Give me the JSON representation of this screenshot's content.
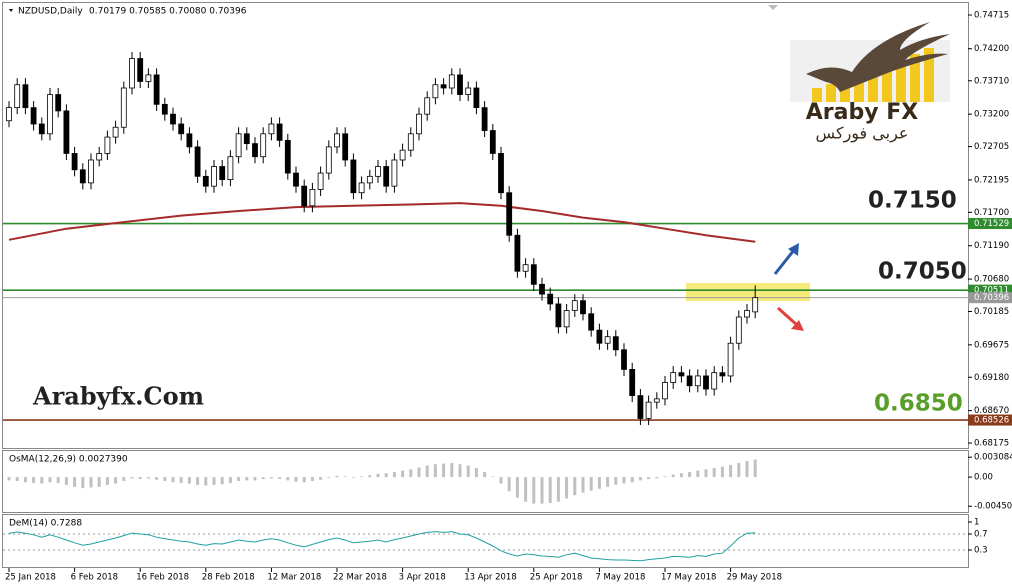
{
  "chart_data": [
    {
      "type": "candlestick",
      "title": "NZDUSD,Daily",
      "ohlc_label": "0.70179 0.70585 0.70080 0.70396",
      "categories": [
        "25 Jan 2018",
        null,
        null,
        null,
        null,
        null,
        null,
        null,
        "6 Feb 2018",
        null,
        null,
        null,
        null,
        null,
        null,
        null,
        "16 Feb 2018",
        null,
        null,
        null,
        null,
        null,
        null,
        null,
        "28 Feb 2018",
        null,
        null,
        null,
        null,
        null,
        null,
        null,
        "12 Mar 2018",
        null,
        null,
        null,
        null,
        null,
        null,
        null,
        "22 Mar 2018",
        null,
        null,
        null,
        null,
        null,
        null,
        null,
        "3 Apr 2018",
        null,
        null,
        null,
        null,
        null,
        null,
        null,
        "13 Apr 2018",
        null,
        null,
        null,
        null,
        null,
        null,
        null,
        "25 Apr 2018",
        null,
        null,
        null,
        null,
        null,
        null,
        null,
        "7 May 2018",
        null,
        null,
        null,
        null,
        null,
        null,
        null,
        "17 May 2018",
        null,
        null,
        null,
        null,
        null,
        null,
        null,
        "29 May 2018",
        null,
        null,
        null
      ],
      "candles": [
        [
          0.731,
          0.734,
          0.73,
          0.733
        ],
        [
          0.733,
          0.7375,
          0.732,
          0.7365
        ],
        [
          0.7365,
          0.7375,
          0.732,
          0.733
        ],
        [
          0.733,
          0.734,
          0.7295,
          0.7305
        ],
        [
          0.7305,
          0.7315,
          0.728,
          0.729
        ],
        [
          0.729,
          0.736,
          0.728,
          0.735
        ],
        [
          0.735,
          0.736,
          0.7315,
          0.7325
        ],
        [
          0.7325,
          0.7335,
          0.725,
          0.726
        ],
        [
          0.726,
          0.727,
          0.7225,
          0.7235
        ],
        [
          0.7235,
          0.7245,
          0.7205,
          0.7215
        ],
        [
          0.7215,
          0.726,
          0.7205,
          0.725
        ],
        [
          0.725,
          0.727,
          0.724,
          0.726
        ],
        [
          0.726,
          0.7295,
          0.725,
          0.7285
        ],
        [
          0.7285,
          0.731,
          0.7275,
          0.73
        ],
        [
          0.73,
          0.737,
          0.729,
          0.736
        ],
        [
          0.736,
          0.7415,
          0.735,
          0.7405
        ],
        [
          0.7405,
          0.7415,
          0.736,
          0.737
        ],
        [
          0.737,
          0.739,
          0.736,
          0.738
        ],
        [
          0.738,
          0.739,
          0.7325,
          0.7335
        ],
        [
          0.7335,
          0.7345,
          0.731,
          0.732
        ],
        [
          0.732,
          0.733,
          0.7295,
          0.7305
        ],
        [
          0.7305,
          0.7315,
          0.728,
          0.729
        ],
        [
          0.729,
          0.73,
          0.726,
          0.727
        ],
        [
          0.727,
          0.728,
          0.7215,
          0.7225
        ],
        [
          0.7225,
          0.7235,
          0.72,
          0.721
        ],
        [
          0.721,
          0.725,
          0.72,
          0.724
        ],
        [
          0.724,
          0.725,
          0.721,
          0.722
        ],
        [
          0.722,
          0.7265,
          0.721,
          0.7255
        ],
        [
          0.7255,
          0.73,
          0.7245,
          0.729
        ],
        [
          0.729,
          0.73,
          0.7265,
          0.7275
        ],
        [
          0.7275,
          0.7285,
          0.7245,
          0.7255
        ],
        [
          0.7255,
          0.73,
          0.7245,
          0.729
        ],
        [
          0.729,
          0.7315,
          0.728,
          0.7305
        ],
        [
          0.7305,
          0.7315,
          0.727,
          0.728
        ],
        [
          0.728,
          0.729,
          0.722,
          0.723
        ],
        [
          0.723,
          0.724,
          0.72,
          0.721
        ],
        [
          0.721,
          0.722,
          0.717,
          0.718
        ],
        [
          0.718,
          0.7215,
          0.717,
          0.7205
        ],
        [
          0.7205,
          0.724,
          0.7195,
          0.723
        ],
        [
          0.723,
          0.728,
          0.722,
          0.727
        ],
        [
          0.727,
          0.73,
          0.726,
          0.729
        ],
        [
          0.729,
          0.73,
          0.724,
          0.725
        ],
        [
          0.725,
          0.726,
          0.719,
          0.72
        ],
        [
          0.72,
          0.7225,
          0.719,
          0.7215
        ],
        [
          0.7215,
          0.7235,
          0.7205,
          0.7225
        ],
        [
          0.7225,
          0.725,
          0.7215,
          0.724
        ],
        [
          0.724,
          0.725,
          0.72,
          0.721
        ],
        [
          0.721,
          0.726,
          0.72,
          0.725
        ],
        [
          0.725,
          0.7275,
          0.724,
          0.7265
        ],
        [
          0.7265,
          0.73,
          0.7255,
          0.729
        ],
        [
          0.729,
          0.733,
          0.728,
          0.732
        ],
        [
          0.732,
          0.7355,
          0.731,
          0.7345
        ],
        [
          0.7345,
          0.7375,
          0.7335,
          0.7365
        ],
        [
          0.7365,
          0.7375,
          0.735,
          0.736
        ],
        [
          0.736,
          0.739,
          0.735,
          0.738
        ],
        [
          0.738,
          0.739,
          0.734,
          0.735
        ],
        [
          0.735,
          0.737,
          0.734,
          0.736
        ],
        [
          0.736,
          0.737,
          0.732,
          0.733
        ],
        [
          0.733,
          0.734,
          0.7285,
          0.7295
        ],
        [
          0.7295,
          0.7305,
          0.725,
          0.726
        ],
        [
          0.726,
          0.727,
          0.719,
          0.72
        ],
        [
          0.72,
          0.721,
          0.7125,
          0.7135
        ],
        [
          0.7135,
          0.7145,
          0.707,
          0.708
        ],
        [
          0.708,
          0.71,
          0.707,
          0.709
        ],
        [
          0.709,
          0.71,
          0.705,
          0.706
        ],
        [
          0.706,
          0.707,
          0.7035,
          0.7045
        ],
        [
          0.7045,
          0.7055,
          0.702,
          0.703
        ],
        [
          0.703,
          0.704,
          0.6985,
          0.6995
        ],
        [
          0.6995,
          0.703,
          0.6985,
          0.702
        ],
        [
          0.702,
          0.7045,
          0.701,
          0.7035
        ],
        [
          0.7035,
          0.7045,
          0.7005,
          0.7015
        ],
        [
          0.7015,
          0.7025,
          0.698,
          0.699
        ],
        [
          0.699,
          0.7,
          0.696,
          0.697
        ],
        [
          0.697,
          0.699,
          0.696,
          0.698
        ],
        [
          0.698,
          0.699,
          0.695,
          0.696
        ],
        [
          0.696,
          0.697,
          0.692,
          0.693
        ],
        [
          0.693,
          0.694,
          0.688,
          0.689
        ],
        [
          0.689,
          0.69,
          0.6845,
          0.6855
        ],
        [
          0.6855,
          0.689,
          0.6845,
          0.688
        ],
        [
          0.688,
          0.6895,
          0.687,
          0.6885
        ],
        [
          0.6885,
          0.692,
          0.6875,
          0.691
        ],
        [
          0.691,
          0.6935,
          0.69,
          0.6925
        ],
        [
          0.6925,
          0.6935,
          0.691,
          0.692
        ],
        [
          0.692,
          0.693,
          0.6895,
          0.6905
        ],
        [
          0.6905,
          0.693,
          0.6895,
          0.692
        ],
        [
          0.692,
          0.693,
          0.689,
          0.69
        ],
        [
          0.69,
          0.6935,
          0.689,
          0.6925
        ],
        [
          0.6925,
          0.6935,
          0.691,
          0.692
        ],
        [
          0.692,
          0.698,
          0.691,
          0.697
        ],
        [
          0.697,
          0.702,
          0.696,
          0.701
        ],
        [
          0.701,
          0.703,
          0.7,
          0.702
        ],
        [
          0.70179,
          0.70585,
          0.7008,
          0.70396
        ]
      ],
      "bull_color": "#ffffff",
      "bear_color": "#000000",
      "ma": {
        "color": "#a52a2a",
        "x": [
          0,
          7,
          14,
          21,
          28,
          35,
          42,
          49,
          55,
          60,
          65,
          70,
          75,
          80,
          85,
          91
        ],
        "values": [
          0.7128,
          0.7145,
          0.7155,
          0.7165,
          0.7172,
          0.7178,
          0.718,
          0.7182,
          0.7184,
          0.718,
          0.7172,
          0.7162,
          0.7155,
          0.7145,
          0.7135,
          0.7125
        ]
      },
      "levels": [
        {
          "value": 0.71529,
          "color": "#2e8b2e"
        },
        {
          "value": 0.70511,
          "color": "#2e8b2e"
        },
        {
          "value": 0.70396,
          "color": "#999999"
        },
        {
          "value": 0.68526,
          "color": "#8b3a1a"
        }
      ],
      "annotations": [
        {
          "text": "0.7150",
          "color": "#222222"
        },
        {
          "text": "0.7050",
          "color": "#222222"
        },
        {
          "text": "0.6850",
          "color": "#5a9e2a"
        }
      ],
      "ylim": [
        0.68099,
        0.74914
      ],
      "yticks": [
        0.74715,
        {
          "value": 0.742,
          "label": "0.74200"
        },
        {
          "value": 0.7371,
          "label": "0.73710"
        },
        {
          "value": 0.732,
          "label": "0.73200"
        },
        0.72705,
        0.72195,
        {
          "value": 0.717,
          "label": "0.71700"
        },
        {
          "value": 0.7119,
          "label": "0.71190"
        },
        {
          "value": 0.7068,
          "label": "0.70680"
        },
        0.70185,
        0.69675,
        {
          "value": 0.6918,
          "label": "0.69180"
        },
        {
          "value": 0.6867,
          "label": "0.68670"
        },
        0.68175
      ]
    },
    {
      "type": "histogram",
      "title": "OsMA(12,26,9) 0.0027390",
      "color": "#c0c0c0",
      "values": [
        -0.0005,
        -0.0006,
        -0.0008,
        -0.0009,
        -0.001,
        -0.0008,
        -0.0009,
        -0.0012,
        -0.0015,
        -0.0017,
        -0.0016,
        -0.0015,
        -0.0012,
        -0.001,
        -0.0006,
        -0.0002,
        -0.0003,
        -0.0002,
        -0.0004,
        -0.0006,
        -0.0008,
        -0.0009,
        -0.001,
        -0.0012,
        -0.0013,
        -0.0012,
        -0.0011,
        -0.0009,
        -0.0006,
        -0.0005,
        -0.0005,
        -0.0003,
        -0.0002,
        -0.0003,
        -0.0005,
        -0.0007,
        -0.0008,
        -0.0006,
        -0.0004,
        -0.0001,
        0.0002,
        0.0001,
        -0.0001,
        0.0001,
        0.0003,
        0.0005,
        0.0006,
        0.0008,
        0.001,
        0.0012,
        0.0015,
        0.0018,
        0.002,
        0.0021,
        0.0022,
        0.002,
        0.0018,
        0.0014,
        0.0008,
        0.0001,
        -0.001,
        -0.0022,
        -0.0032,
        -0.0038,
        -0.0041,
        -0.0041,
        -0.004,
        -0.0038,
        -0.0033,
        -0.0028,
        -0.0024,
        -0.0021,
        -0.0018,
        -0.0015,
        -0.0012,
        -0.001,
        -0.0008,
        -0.0005,
        -0.0003,
        -0.0002,
        0.0001,
        0.0004,
        0.0006,
        0.0008,
        0.001,
        0.0012,
        0.0014,
        0.0016,
        0.0019,
        0.0022,
        0.0025,
        0.002739
      ],
      "ylim": [
        -0.0054,
        0.0042
      ],
      "yticks": [
        0.003084,
        {
          "value": 0,
          "label": "0.00"
        },
        -0.004505
      ]
    },
    {
      "type": "line",
      "title": "DeM(14) 0.7288",
      "color": "#20a0a0",
      "values": [
        0.72,
        0.75,
        0.72,
        0.68,
        0.62,
        0.68,
        0.62,
        0.55,
        0.48,
        0.42,
        0.45,
        0.5,
        0.55,
        0.6,
        0.66,
        0.72,
        0.7,
        0.68,
        0.62,
        0.58,
        0.55,
        0.52,
        0.5,
        0.45,
        0.42,
        0.46,
        0.45,
        0.5,
        0.55,
        0.52,
        0.5,
        0.55,
        0.58,
        0.55,
        0.48,
        0.42,
        0.38,
        0.44,
        0.5,
        0.56,
        0.6,
        0.55,
        0.48,
        0.5,
        0.52,
        0.55,
        0.5,
        0.56,
        0.6,
        0.65,
        0.7,
        0.74,
        0.76,
        0.74,
        0.76,
        0.7,
        0.68,
        0.6,
        0.5,
        0.4,
        0.28,
        0.2,
        0.15,
        0.2,
        0.18,
        0.15,
        0.14,
        0.12,
        0.18,
        0.22,
        0.16,
        0.1,
        0.08,
        0.06,
        0.05,
        0.05,
        0.04,
        0.03,
        0.06,
        0.08,
        0.1,
        0.14,
        0.13,
        0.12,
        0.16,
        0.14,
        0.2,
        0.22,
        0.4,
        0.6,
        0.72,
        0.7288
      ],
      "ylim": [
        0,
        1
      ],
      "yticks": [
        1,
        0.7,
        0.3
      ]
    }
  ],
  "watermark": "Arabyfx.Com",
  "logo": {
    "title": "Araby FX",
    "subtitle": "عربى فوركس"
  }
}
